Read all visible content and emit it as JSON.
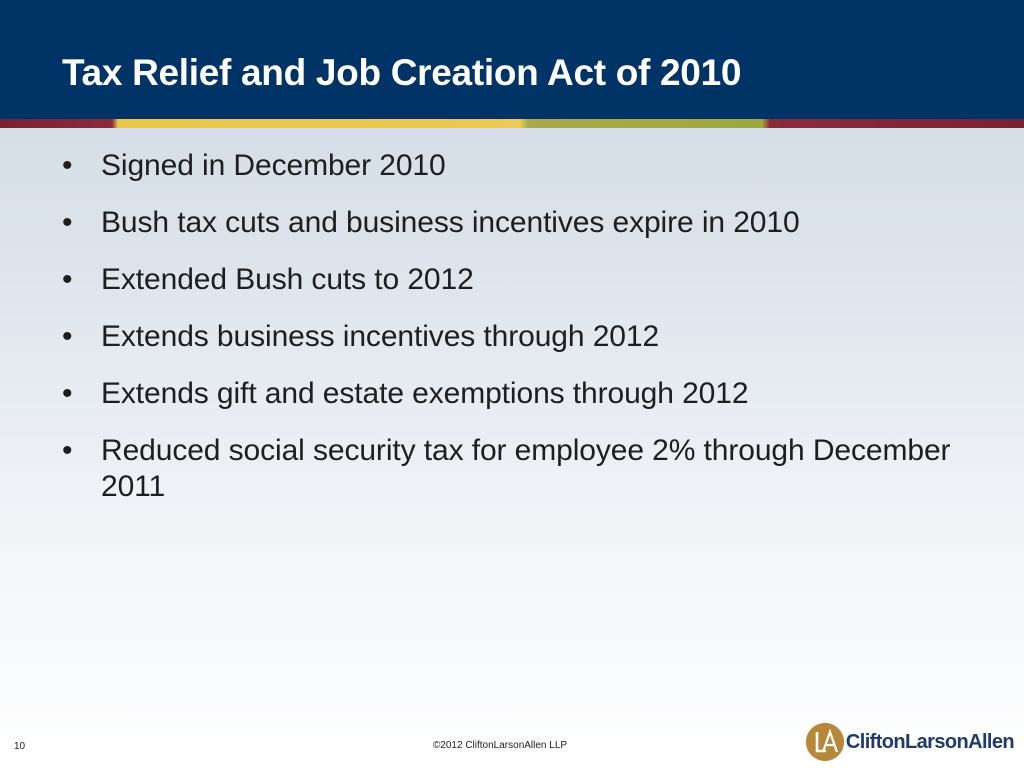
{
  "slide": {
    "title": "Tax Relief and Job Creation Act of 2010",
    "bullets": [
      "Signed in December 2010",
      "Bush tax cuts and business incentives expire in 2010",
      "Extended Bush cuts to 2012",
      "Extends business incentives through 2012",
      "Extends gift and estate exemptions through 2012",
      "Reduced social security tax for employee 2% through December 2011"
    ],
    "bullet_symbol": "•"
  },
  "footer": {
    "page_number": "10",
    "copyright": "©2012 CliftonLarsonAllen LLP",
    "logo_text": "CliftonLarsonAllen"
  },
  "colors": {
    "header_bg": "#003366",
    "stripe_red": "#7a2232",
    "stripe_yellow": "#edc955",
    "stripe_olive": "#9ea83f",
    "logo_gold": "#b7873a",
    "logo_navy": "#1f3a6b"
  },
  "icons": {
    "logo_mark": "cla-logo-icon"
  }
}
